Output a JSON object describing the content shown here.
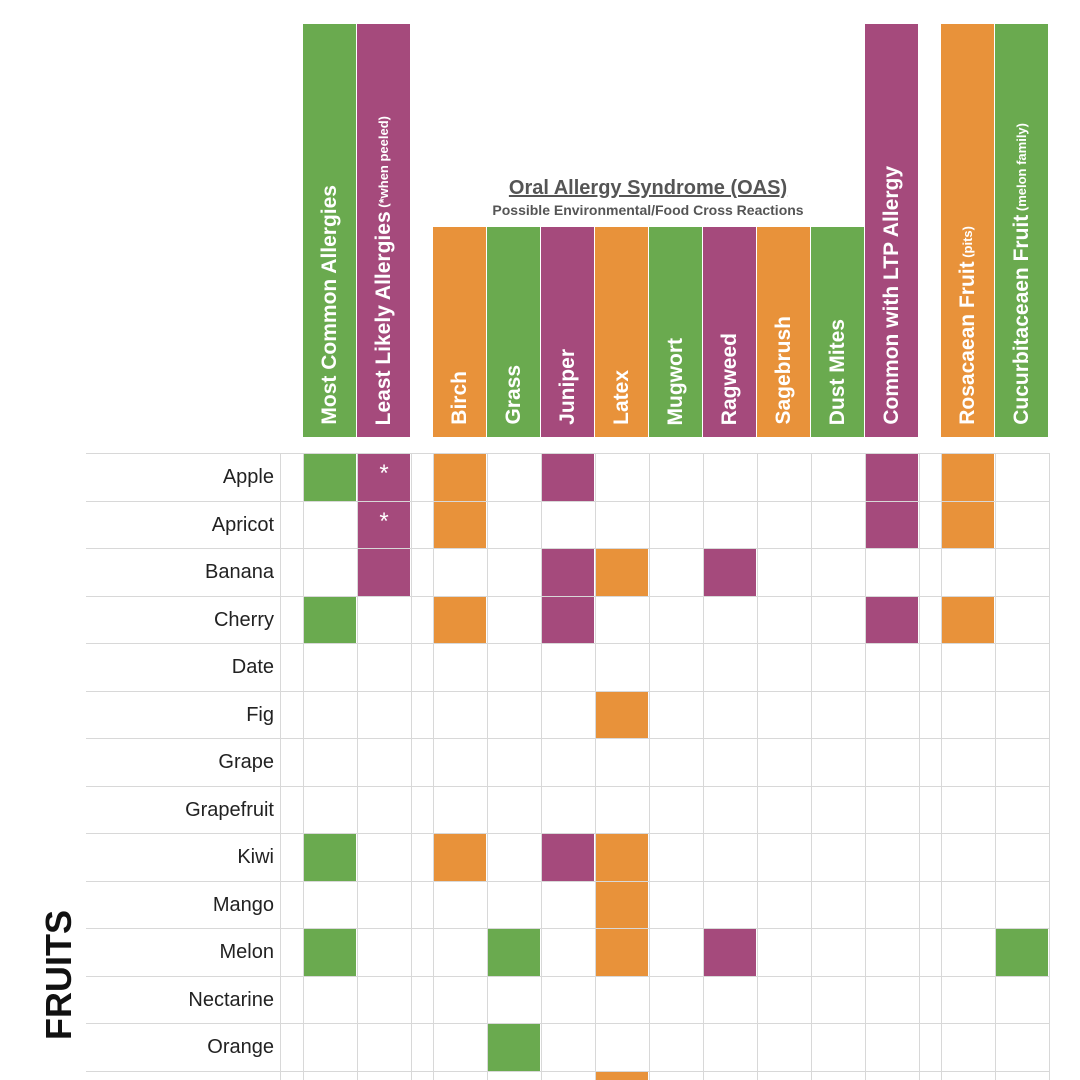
{
  "chart_data": {
    "type": "table",
    "section_label": "FRUITS",
    "oas_title": "Oral Allergy Syndrome (OAS)",
    "oas_subtitle": "Possible Environmental/Food Cross Reactions",
    "columns": [
      {
        "label": "Most Common Allergies",
        "note": "",
        "color": "#6aaa4f"
      },
      {
        "label": "Least Likely Allergies",
        "note": "(*when peeled)",
        "color": "#a54a7c"
      },
      {
        "label": "Birch",
        "note": "",
        "color": "#e8923a"
      },
      {
        "label": "Grass",
        "note": "",
        "color": "#6aaa4f"
      },
      {
        "label": "Juniper",
        "note": "",
        "color": "#a54a7c"
      },
      {
        "label": "Latex",
        "note": "",
        "color": "#e8923a"
      },
      {
        "label": "Mugwort",
        "note": "",
        "color": "#6aaa4f"
      },
      {
        "label": "Ragweed",
        "note": "",
        "color": "#a54a7c"
      },
      {
        "label": "Sagebrush",
        "note": "",
        "color": "#e8923a"
      },
      {
        "label": "Dust Mites",
        "note": "",
        "color": "#6aaa4f"
      },
      {
        "label": "Common with LTP Allergy",
        "note": "",
        "color": "#a54a7c"
      },
      {
        "label": "Rosacaean Fruit",
        "note": "(pits)",
        "color": "#e8923a"
      },
      {
        "label": "Cucurbitaceaen Fruit",
        "note": "(melon family)",
        "color": "#6aaa4f"
      }
    ],
    "rows": [
      {
        "label": "Apple",
        "marks": [
          1,
          1,
          1,
          0,
          1,
          0,
          0,
          0,
          0,
          0,
          1,
          1,
          0
        ],
        "stars": [
          1
        ]
      },
      {
        "label": "Apricot",
        "marks": [
          0,
          1,
          1,
          0,
          0,
          0,
          0,
          0,
          0,
          0,
          1,
          1,
          0
        ],
        "stars": [
          1
        ]
      },
      {
        "label": "Banana",
        "marks": [
          0,
          1,
          0,
          0,
          1,
          1,
          0,
          1,
          0,
          0,
          0,
          0,
          0
        ],
        "stars": []
      },
      {
        "label": "Cherry",
        "marks": [
          1,
          0,
          1,
          0,
          1,
          0,
          0,
          0,
          0,
          0,
          1,
          1,
          0
        ],
        "stars": []
      },
      {
        "label": "Date",
        "marks": [
          0,
          0,
          0,
          0,
          0,
          0,
          0,
          0,
          0,
          0,
          0,
          0,
          0
        ],
        "stars": []
      },
      {
        "label": "Fig",
        "marks": [
          0,
          0,
          0,
          0,
          0,
          1,
          0,
          0,
          0,
          0,
          0,
          0,
          0
        ],
        "stars": []
      },
      {
        "label": "Grape",
        "marks": [
          0,
          0,
          0,
          0,
          0,
          0,
          0,
          0,
          0,
          0,
          0,
          0,
          0
        ],
        "stars": []
      },
      {
        "label": "Grapefruit",
        "marks": [
          0,
          0,
          0,
          0,
          0,
          0,
          0,
          0,
          0,
          0,
          0,
          0,
          0
        ],
        "stars": []
      },
      {
        "label": "Kiwi",
        "marks": [
          1,
          0,
          1,
          0,
          1,
          1,
          0,
          0,
          0,
          0,
          0,
          0,
          0
        ],
        "stars": []
      },
      {
        "label": "Mango",
        "marks": [
          0,
          0,
          0,
          0,
          0,
          1,
          0,
          0,
          0,
          0,
          0,
          0,
          0
        ],
        "stars": []
      },
      {
        "label": "Melon",
        "marks": [
          1,
          0,
          0,
          1,
          0,
          1,
          0,
          1,
          0,
          0,
          0,
          0,
          1
        ],
        "stars": []
      },
      {
        "label": "Nectarine",
        "marks": [
          0,
          0,
          0,
          0,
          0,
          0,
          0,
          0,
          0,
          0,
          0,
          0,
          0
        ],
        "stars": []
      },
      {
        "label": "Orange",
        "marks": [
          0,
          0,
          0,
          1,
          0,
          0,
          0,
          0,
          0,
          0,
          0,
          0,
          0
        ],
        "stars": []
      }
    ],
    "star_symbol": "*"
  }
}
